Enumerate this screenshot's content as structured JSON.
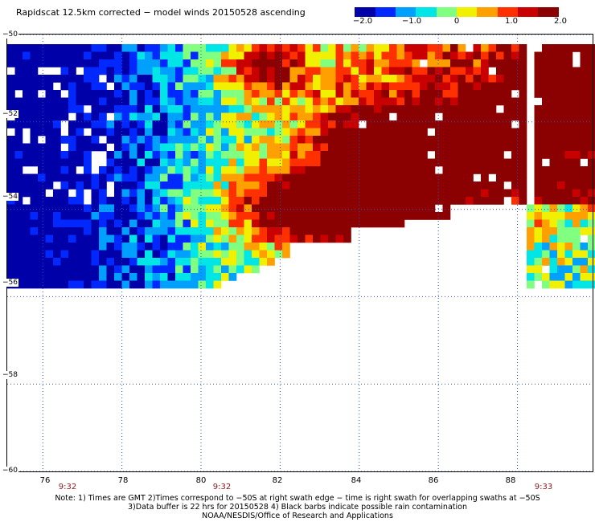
{
  "title": "Rapidscat 12.5km corrected − model winds 20150528 ascending",
  "colorbar": {
    "ticks": [
      "−2.0",
      "−1.0",
      "0",
      "1.0",
      "2.0"
    ],
    "range": [
      -2.0,
      2.0
    ],
    "colors": [
      "#0000a8",
      "#0028ff",
      "#00a0ff",
      "#00e6e6",
      "#80ff80",
      "#f0f000",
      "#ffa000",
      "#ff3000",
      "#c80000",
      "#8b0000"
    ]
  },
  "map": {
    "lat_labels": [
      "−50",
      "−52",
      "−54",
      "−56",
      "−58",
      "−60"
    ],
    "lon_labels": [
      "76",
      "78",
      "80",
      "82",
      "84",
      "86",
      "88"
    ],
    "lat_range": [
      -60,
      -50
    ],
    "lon_range": [
      75.1,
      89.9
    ],
    "grid_style": "dotted",
    "grid_lats": [
      -50,
      -52,
      -54,
      -56,
      -58,
      -60
    ],
    "grid_lons": [
      76,
      78,
      80,
      82,
      84,
      86,
      88
    ]
  },
  "time_labels": [
    "9:32",
    "9:32",
    "9:33"
  ],
  "notes": [
    "Note: 1) Times are GMT 2)Times correspond to −50S at right swath edge − time is right swath for overlapping swaths at −50S",
    "3)Data buffer is 22 hrs for 20150528 4) Black barbs indicate possible rain contamination",
    "NOAA/NESDIS/Office of Research and Applications"
  ]
}
